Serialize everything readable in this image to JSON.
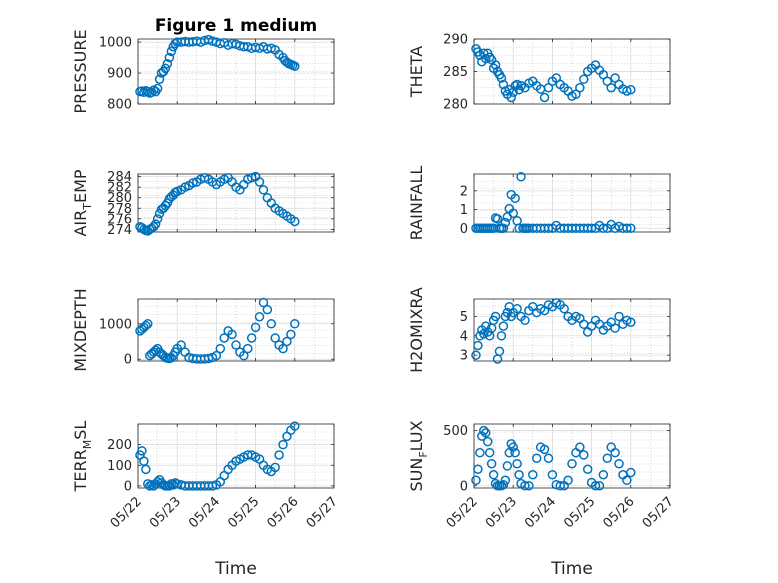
{
  "figure_title": "Figure 1 medium",
  "colors": {
    "marker": "#0072BD",
    "axis": "#262626",
    "grid": "#b8b8b8"
  },
  "chart_data": [
    {
      "id": "pressure",
      "type": "scatter",
      "ylabel": "PRESSURE",
      "title": "Figure 1 medium",
      "ylim": [
        800,
        1010
      ],
      "yticks": [
        800,
        900,
        1000
      ],
      "ytick_labels": [
        "800",
        "900",
        "1000"
      ],
      "xlim": [
        0,
        5
      ],
      "xticks": [
        0,
        1,
        2,
        3,
        4,
        5
      ],
      "xtick_labels": [
        "05/22",
        "05/23",
        "05/24",
        "05/25",
        "05/26",
        "05/27"
      ],
      "xlabel": "",
      "x": [
        0.05,
        0.1,
        0.15,
        0.2,
        0.25,
        0.3,
        0.35,
        0.4,
        0.45,
        0.5,
        0.55,
        0.6,
        0.65,
        0.7,
        0.75,
        0.8,
        0.85,
        0.9,
        0.95,
        1.0,
        1.1,
        1.2,
        1.3,
        1.4,
        1.5,
        1.6,
        1.7,
        1.8,
        1.9,
        2.0,
        2.1,
        2.2,
        2.3,
        2.4,
        2.5,
        2.6,
        2.7,
        2.8,
        2.9,
        3.0,
        3.1,
        3.2,
        3.3,
        3.4,
        3.5,
        3.6,
        3.7,
        3.75,
        3.8,
        3.85,
        3.9,
        3.95,
        4.0
      ],
      "y": [
        840,
        842,
        838,
        843,
        840,
        835,
        838,
        845,
        840,
        850,
        880,
        900,
        905,
        915,
        930,
        950,
        970,
        985,
        995,
        1000,
        1000,
        1002,
        1000,
        1001,
        1003,
        1000,
        1005,
        1008,
        1003,
        1000,
        995,
        998,
        990,
        995,
        993,
        988,
        985,
        985,
        980,
        983,
        980,
        985,
        978,
        980,
        975,
        960,
        950,
        940,
        935,
        930,
        928,
        925,
        922
      ]
    },
    {
      "id": "theta",
      "type": "scatter",
      "ylabel": "THETA",
      "ylim": [
        280,
        290
      ],
      "yticks": [
        280,
        285,
        290
      ],
      "ytick_labels": [
        "280",
        "285",
        "290"
      ],
      "xlim": [
        0,
        5
      ],
      "xticks": [
        0,
        1,
        2,
        3,
        4,
        5
      ],
      "xtick_labels": [
        "05/22",
        "05/23",
        "05/24",
        "05/25",
        "05/26",
        "05/27"
      ],
      "xlabel": "",
      "x": [
        0.05,
        0.1,
        0.15,
        0.2,
        0.25,
        0.3,
        0.35,
        0.4,
        0.45,
        0.5,
        0.55,
        0.6,
        0.65,
        0.7,
        0.75,
        0.8,
        0.85,
        0.9,
        0.95,
        1.0,
        1.05,
        1.1,
        1.15,
        1.2,
        1.3,
        1.4,
        1.5,
        1.6,
        1.7,
        1.8,
        1.9,
        2.0,
        2.1,
        2.2,
        2.3,
        2.4,
        2.5,
        2.6,
        2.7,
        2.8,
        2.9,
        3.0,
        3.1,
        3.2,
        3.3,
        3.4,
        3.5,
        3.6,
        3.7,
        3.8,
        3.9,
        4.0
      ],
      "y": [
        288.5,
        288,
        287.5,
        286.5,
        287.8,
        287,
        287.8,
        287.2,
        286.8,
        285.5,
        286,
        285,
        284.5,
        284,
        283,
        282,
        281.5,
        282.2,
        281,
        281.8,
        282.8,
        283,
        282.2,
        282.8,
        282.5,
        283.2,
        283.5,
        282.8,
        282.3,
        281,
        282.5,
        283.5,
        284,
        283,
        282.5,
        282,
        281.2,
        281.5,
        282.5,
        283.8,
        285,
        285.5,
        286,
        285.2,
        284.5,
        283.5,
        282.5,
        284,
        283,
        282.3,
        282,
        282.2
      ]
    },
    {
      "id": "air_temp",
      "type": "scatter",
      "ylabel": "AIR_TEMP",
      "ylabel_display": "AIR",
      "ylabel_sub": "T",
      "ylabel_rest": "EMP",
      "ylim": [
        273.5,
        284.5
      ],
      "yticks": [
        274,
        276,
        278,
        280,
        282,
        284
      ],
      "ytick_labels": [
        "274",
        "276",
        "278",
        "280",
        "282",
        "284"
      ],
      "xlim": [
        0,
        5
      ],
      "xticks": [
        0,
        1,
        2,
        3,
        4,
        5
      ],
      "xtick_labels": [
        "05/22",
        "05/23",
        "05/24",
        "05/25",
        "05/26",
        "05/27"
      ],
      "xlabel": "",
      "x": [
        0.05,
        0.1,
        0.15,
        0.2,
        0.25,
        0.3,
        0.35,
        0.4,
        0.45,
        0.5,
        0.55,
        0.6,
        0.65,
        0.7,
        0.75,
        0.8,
        0.85,
        0.9,
        0.95,
        1.0,
        1.1,
        1.2,
        1.3,
        1.4,
        1.5,
        1.6,
        1.7,
        1.8,
        1.9,
        2.0,
        2.1,
        2.2,
        2.3,
        2.4,
        2.5,
        2.6,
        2.7,
        2.8,
        2.9,
        3.0,
        3.1,
        3.2,
        3.3,
        3.4,
        3.5,
        3.6,
        3.7,
        3.8,
        3.9,
        4.0
      ],
      "y": [
        274.5,
        274.3,
        274,
        273.8,
        273.7,
        274,
        274.2,
        274.5,
        275,
        276,
        277,
        277.8,
        278,
        278.5,
        279,
        279.8,
        280.2,
        280.5,
        281,
        281.2,
        281.5,
        282,
        282.3,
        282.8,
        283,
        283.5,
        283.8,
        283.5,
        283,
        282.5,
        283,
        283.5,
        283.8,
        283,
        282,
        281.5,
        282.5,
        283.5,
        283.8,
        284,
        283,
        281.5,
        280,
        279,
        278,
        277.5,
        277,
        276.5,
        276,
        275.5
      ]
    },
    {
      "id": "rainfall",
      "type": "scatter",
      "ylabel": "RAINFALL",
      "ylim": [
        -0.2,
        2.9
      ],
      "yticks": [
        0,
        1,
        2
      ],
      "ytick_labels": [
        "0",
        "1",
        "2"
      ],
      "xlim": [
        0,
        5
      ],
      "xticks": [
        0,
        1,
        2,
        3,
        4,
        5
      ],
      "xtick_labels": [
        "05/22",
        "05/23",
        "05/24",
        "05/25",
        "05/26",
        "05/27"
      ],
      "xlabel": "",
      "x": [
        0.05,
        0.1,
        0.15,
        0.2,
        0.25,
        0.3,
        0.35,
        0.4,
        0.45,
        0.5,
        0.55,
        0.6,
        0.65,
        0.7,
        0.75,
        0.8,
        0.85,
        0.9,
        0.95,
        1.0,
        1.05,
        1.1,
        1.15,
        1.2,
        1.25,
        1.3,
        1.35,
        1.4,
        1.5,
        1.6,
        1.7,
        1.8,
        1.9,
        2.0,
        2.1,
        2.2,
        2.3,
        2.4,
        2.5,
        2.6,
        2.7,
        2.8,
        2.9,
        3.0,
        3.1,
        3.2,
        3.3,
        3.4,
        3.5,
        3.6,
        3.7,
        3.8,
        3.9,
        4.0
      ],
      "y": [
        0,
        0,
        0,
        0,
        0,
        0,
        0,
        0,
        0,
        0,
        0.55,
        0.5,
        0,
        0,
        0,
        0.3,
        0.6,
        1.05,
        1.8,
        0.8,
        1.6,
        0.4,
        0,
        2.75,
        0,
        0,
        0,
        0,
        0,
        0,
        0,
        0,
        0,
        0,
        0.15,
        0,
        0,
        0,
        0,
        0,
        0,
        0,
        0,
        0,
        0,
        0.15,
        0,
        0,
        0.2,
        0,
        0.1,
        0,
        0,
        0
      ]
    },
    {
      "id": "mixdepth",
      "type": "scatter",
      "ylabel": "MIXDEPTH",
      "ylim": [
        -50,
        1700
      ],
      "yticks": [
        0,
        1000
      ],
      "ytick_labels": [
        "0",
        "1000"
      ],
      "xlim": [
        0,
        5
      ],
      "xticks": [
        0,
        1,
        2,
        3,
        4,
        5
      ],
      "xtick_labels": [
        "05/22",
        "05/23",
        "05/24",
        "05/25",
        "05/26",
        "05/27"
      ],
      "xlabel": "",
      "x": [
        0.05,
        0.1,
        0.15,
        0.2,
        0.25,
        0.3,
        0.35,
        0.4,
        0.45,
        0.5,
        0.55,
        0.6,
        0.65,
        0.7,
        0.75,
        0.8,
        0.85,
        0.9,
        0.95,
        1.0,
        1.1,
        1.2,
        1.3,
        1.4,
        1.5,
        1.6,
        1.7,
        1.8,
        1.9,
        2.0,
        2.1,
        2.2,
        2.3,
        2.4,
        2.5,
        2.6,
        2.7,
        2.8,
        2.9,
        3.0,
        3.1,
        3.2,
        3.3,
        3.4,
        3.5,
        3.6,
        3.7,
        3.8,
        3.9,
        4.0
      ],
      "y": [
        800,
        850,
        900,
        950,
        1000,
        100,
        150,
        200,
        250,
        300,
        200,
        150,
        100,
        50,
        30,
        20,
        40,
        100,
        200,
        300,
        400,
        200,
        50,
        20,
        10,
        5,
        10,
        20,
        50,
        100,
        300,
        600,
        800,
        700,
        400,
        200,
        100,
        300,
        600,
        900,
        1200,
        1600,
        1400,
        1000,
        600,
        400,
        300,
        500,
        700,
        1000
      ]
    },
    {
      "id": "h2omixra",
      "type": "scatter",
      "ylabel": "H2OMIXRA",
      "ylim": [
        2.7,
        5.9
      ],
      "yticks": [
        3,
        4,
        5
      ],
      "ytick_labels": [
        "3",
        "4",
        "5"
      ],
      "xlim": [
        0,
        5
      ],
      "xticks": [
        0,
        1,
        2,
        3,
        4,
        5
      ],
      "xtick_labels": [
        "05/22",
        "05/23",
        "05/24",
        "05/25",
        "05/26",
        "05/27"
      ],
      "xlabel": "",
      "x": [
        0.05,
        0.1,
        0.15,
        0.2,
        0.25,
        0.3,
        0.35,
        0.4,
        0.45,
        0.5,
        0.55,
        0.6,
        0.65,
        0.7,
        0.75,
        0.8,
        0.85,
        0.9,
        0.95,
        1.0,
        1.1,
        1.2,
        1.3,
        1.4,
        1.5,
        1.6,
        1.7,
        1.8,
        1.9,
        2.0,
        2.1,
        2.2,
        2.3,
        2.4,
        2.5,
        2.6,
        2.7,
        2.8,
        2.9,
        3.0,
        3.1,
        3.2,
        3.3,
        3.4,
        3.5,
        3.6,
        3.7,
        3.8,
        3.9,
        4.0
      ],
      "y": [
        3.0,
        3.5,
        4.0,
        4.3,
        4.1,
        4.5,
        4.2,
        4.0,
        4.4,
        4.8,
        5.0,
        2.8,
        3.2,
        4.0,
        4.5,
        5.0,
        5.2,
        5.5,
        5.0,
        5.2,
        5.4,
        5.0,
        4.8,
        5.3,
        5.5,
        5.2,
        5.4,
        5.3,
        5.6,
        5.5,
        5.7,
        5.6,
        5.4,
        5.0,
        4.8,
        5.0,
        4.9,
        4.6,
        4.2,
        4.5,
        4.8,
        4.6,
        4.3,
        4.5,
        4.7,
        4.4,
        5.0,
        4.6,
        4.8,
        4.7
      ]
    },
    {
      "id": "terr_msl",
      "type": "scatter",
      "ylabel": "TERR_MSL",
      "ylabel_display": "TERR",
      "ylabel_sub": "M",
      "ylabel_rest": "SL",
      "ylim": [
        -10,
        300
      ],
      "yticks": [
        0,
        100,
        200
      ],
      "ytick_labels": [
        "0",
        "100",
        "200"
      ],
      "xlim": [
        0,
        5
      ],
      "xticks": [
        0,
        1,
        2,
        3,
        4,
        5
      ],
      "xtick_labels": [
        "05/22",
        "05/23",
        "05/24",
        "05/25",
        "05/26",
        "05/27"
      ],
      "xlabel": "Time",
      "x": [
        0.05,
        0.1,
        0.15,
        0.2,
        0.25,
        0.3,
        0.35,
        0.4,
        0.45,
        0.5,
        0.55,
        0.6,
        0.65,
        0.7,
        0.75,
        0.8,
        0.85,
        0.9,
        0.95,
        1.0,
        1.1,
        1.2,
        1.3,
        1.4,
        1.5,
        1.6,
        1.7,
        1.8,
        1.9,
        2.0,
        2.1,
        2.2,
        2.3,
        2.4,
        2.5,
        2.6,
        2.7,
        2.8,
        2.9,
        3.0,
        3.1,
        3.2,
        3.3,
        3.4,
        3.5,
        3.6,
        3.7,
        3.8,
        3.9,
        4.0
      ],
      "y": [
        150,
        170,
        120,
        80,
        10,
        0,
        5,
        0,
        10,
        20,
        30,
        15,
        5,
        0,
        0,
        0,
        10,
        5,
        15,
        10,
        5,
        0,
        0,
        0,
        0,
        0,
        0,
        0,
        0,
        5,
        20,
        50,
        80,
        100,
        120,
        130,
        140,
        150,
        150,
        140,
        130,
        100,
        80,
        70,
        90,
        150,
        200,
        240,
        270,
        290
      ]
    },
    {
      "id": "sun_flux",
      "type": "scatter",
      "ylabel": "SUN_FLUX",
      "ylabel_display": "SUN",
      "ylabel_sub": "F",
      "ylabel_rest": "LUX",
      "ylim": [
        -20,
        560
      ],
      "yticks": [
        0,
        500
      ],
      "ytick_labels": [
        "0",
        "500"
      ],
      "xlim": [
        0,
        5
      ],
      "xticks": [
        0,
        1,
        2,
        3,
        4,
        5
      ],
      "xtick_labels": [
        "05/22",
        "05/23",
        "05/24",
        "05/25",
        "05/26",
        "05/27"
      ],
      "xlabel": "Time",
      "x": [
        0.05,
        0.1,
        0.15,
        0.2,
        0.25,
        0.3,
        0.35,
        0.4,
        0.45,
        0.5,
        0.55,
        0.6,
        0.65,
        0.7,
        0.75,
        0.8,
        0.85,
        0.9,
        0.95,
        1.0,
        1.05,
        1.1,
        1.15,
        1.2,
        1.3,
        1.4,
        1.5,
        1.6,
        1.7,
        1.8,
        1.9,
        2.0,
        2.1,
        2.2,
        2.3,
        2.4,
        2.5,
        2.6,
        2.7,
        2.8,
        2.9,
        3.0,
        3.1,
        3.2,
        3.3,
        3.4,
        3.5,
        3.6,
        3.7,
        3.8,
        3.9,
        4.0
      ],
      "y": [
        50,
        150,
        300,
        450,
        500,
        480,
        400,
        300,
        200,
        100,
        20,
        0,
        0,
        0,
        10,
        50,
        180,
        300,
        380,
        350,
        300,
        200,
        100,
        20,
        0,
        0,
        100,
        250,
        350,
        330,
        250,
        100,
        10,
        0,
        0,
        50,
        200,
        300,
        350,
        280,
        150,
        30,
        0,
        0,
        100,
        250,
        350,
        300,
        200,
        100,
        50,
        120
      ]
    }
  ]
}
